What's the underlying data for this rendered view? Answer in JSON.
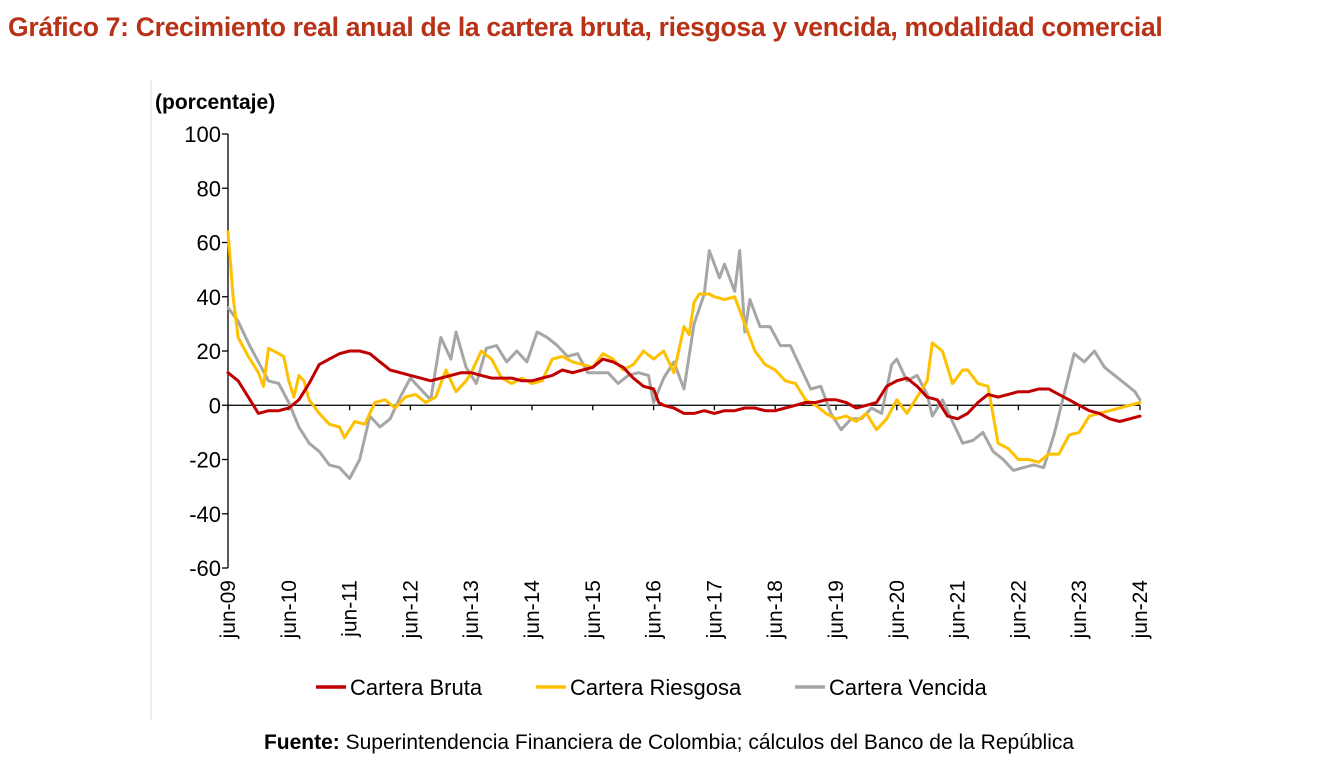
{
  "title": "Gráfico 7: Crecimiento real anual de la cartera bruta, riesgosa y vencida, modalidad comercial",
  "source": {
    "label": "Fuente:",
    "text": "Superintendencia Financiera de Colombia; cálculos del Banco de la República"
  },
  "chart_data": {
    "type": "line",
    "ylabel": "(porcentaje)",
    "ylim": [
      -60,
      100
    ],
    "yticks": [
      -60,
      -40,
      -20,
      0,
      20,
      40,
      60,
      80,
      100
    ],
    "xlim": [
      "2009-06",
      "2024-06"
    ],
    "xticks": [
      "jun-09",
      "jun-10",
      "jun-11",
      "jun-12",
      "jun-13",
      "jun-14",
      "jun-15",
      "jun-16",
      "jun-17",
      "jun-18",
      "jun-19",
      "jun-20",
      "jun-21",
      "jun-22",
      "jun-23",
      "jun-24"
    ],
    "grid": false,
    "legend": "bottom",
    "series": [
      {
        "name": "Cartera Bruta",
        "color": "#c00000",
        "points": [
          [
            "2009-06",
            12
          ],
          [
            "2009-08",
            9
          ],
          [
            "2009-10",
            3
          ],
          [
            "2009-12",
            -3
          ],
          [
            "2010-02",
            -2
          ],
          [
            "2010-04",
            -2
          ],
          [
            "2010-06",
            -1
          ],
          [
            "2010-08",
            2
          ],
          [
            "2010-10",
            8
          ],
          [
            "2010-12",
            15
          ],
          [
            "2011-02",
            17
          ],
          [
            "2011-04",
            19
          ],
          [
            "2011-06",
            20
          ],
          [
            "2011-08",
            20
          ],
          [
            "2011-10",
            19
          ],
          [
            "2011-12",
            16
          ],
          [
            "2012-02",
            13
          ],
          [
            "2012-04",
            12
          ],
          [
            "2012-06",
            11
          ],
          [
            "2012-08",
            10
          ],
          [
            "2012-10",
            9
          ],
          [
            "2012-12",
            10
          ],
          [
            "2013-02",
            11
          ],
          [
            "2013-04",
            12
          ],
          [
            "2013-06",
            12
          ],
          [
            "2013-08",
            11
          ],
          [
            "2013-10",
            10
          ],
          [
            "2013-12",
            10
          ],
          [
            "2014-02",
            10
          ],
          [
            "2014-04",
            9
          ],
          [
            "2014-06",
            9
          ],
          [
            "2014-08",
            10
          ],
          [
            "2014-10",
            11
          ],
          [
            "2014-12",
            13
          ],
          [
            "2015-02",
            12
          ],
          [
            "2015-04",
            13
          ],
          [
            "2015-06",
            14
          ],
          [
            "2015-08",
            17
          ],
          [
            "2015-10",
            16
          ],
          [
            "2015-12",
            14
          ],
          [
            "2016-02",
            10
          ],
          [
            "2016-04",
            7
          ],
          [
            "2016-06",
            6
          ],
          [
            "2016-07",
            1
          ],
          [
            "2016-08",
            0
          ],
          [
            "2016-10",
            -1
          ],
          [
            "2016-12",
            -3
          ],
          [
            "2017-02",
            -3
          ],
          [
            "2017-04",
            -2
          ],
          [
            "2017-06",
            -3
          ],
          [
            "2017-08",
            -2
          ],
          [
            "2017-10",
            -2
          ],
          [
            "2017-12",
            -1
          ],
          [
            "2018-02",
            -1
          ],
          [
            "2018-04",
            -2
          ],
          [
            "2018-06",
            -2
          ],
          [
            "2018-08",
            -1
          ],
          [
            "2018-10",
            0
          ],
          [
            "2018-12",
            1
          ],
          [
            "2019-02",
            1
          ],
          [
            "2019-04",
            2
          ],
          [
            "2019-06",
            2
          ],
          [
            "2019-08",
            1
          ],
          [
            "2019-10",
            -1
          ],
          [
            "2019-12",
            0
          ],
          [
            "2020-02",
            1
          ],
          [
            "2020-04",
            7
          ],
          [
            "2020-06",
            9
          ],
          [
            "2020-08",
            10
          ],
          [
            "2020-10",
            7
          ],
          [
            "2020-12",
            3
          ],
          [
            "2021-02",
            2
          ],
          [
            "2021-04",
            -4
          ],
          [
            "2021-06",
            -5
          ],
          [
            "2021-08",
            -3
          ],
          [
            "2021-10",
            1
          ],
          [
            "2021-12",
            4
          ],
          [
            "2022-02",
            3
          ],
          [
            "2022-04",
            4
          ],
          [
            "2022-06",
            5
          ],
          [
            "2022-08",
            5
          ],
          [
            "2022-10",
            6
          ],
          [
            "2022-12",
            6
          ],
          [
            "2023-02",
            4
          ],
          [
            "2023-04",
            2
          ],
          [
            "2023-06",
            0
          ],
          [
            "2023-08",
            -2
          ],
          [
            "2023-10",
            -3
          ],
          [
            "2023-12",
            -5
          ],
          [
            "2024-02",
            -6
          ],
          [
            "2024-04",
            -5
          ],
          [
            "2024-06",
            -4
          ]
        ]
      },
      {
        "name": "Cartera Riesgosa",
        "color": "#ffc000",
        "points": [
          [
            "2009-06",
            64
          ],
          [
            "2009-07",
            40
          ],
          [
            "2009-08",
            25
          ],
          [
            "2009-10",
            18
          ],
          [
            "2009-12",
            12
          ],
          [
            "2010-01",
            7
          ],
          [
            "2010-02",
            21
          ],
          [
            "2010-04",
            19
          ],
          [
            "2010-05",
            18
          ],
          [
            "2010-06",
            9
          ],
          [
            "2010-07",
            3
          ],
          [
            "2010-08",
            11
          ],
          [
            "2010-09",
            9
          ],
          [
            "2010-10",
            2
          ],
          [
            "2010-12",
            -3
          ],
          [
            "2011-02",
            -7
          ],
          [
            "2011-04",
            -8
          ],
          [
            "2011-05",
            -12
          ],
          [
            "2011-07",
            -6
          ],
          [
            "2011-09",
            -7
          ],
          [
            "2011-11",
            1
          ],
          [
            "2012-01",
            2
          ],
          [
            "2012-03",
            -1
          ],
          [
            "2012-05",
            3
          ],
          [
            "2012-07",
            4
          ],
          [
            "2012-09",
            1
          ],
          [
            "2012-11",
            3
          ],
          [
            "2013-01",
            13
          ],
          [
            "2013-03",
            5
          ],
          [
            "2013-05",
            9
          ],
          [
            "2013-06",
            12
          ],
          [
            "2013-08",
            20
          ],
          [
            "2013-10",
            17
          ],
          [
            "2013-12",
            10
          ],
          [
            "2014-02",
            8
          ],
          [
            "2014-04",
            10
          ],
          [
            "2014-06",
            8
          ],
          [
            "2014-08",
            9
          ],
          [
            "2014-10",
            17
          ],
          [
            "2014-12",
            18
          ],
          [
            "2015-02",
            16
          ],
          [
            "2015-04",
            15
          ],
          [
            "2015-06",
            14
          ],
          [
            "2015-08",
            19
          ],
          [
            "2015-10",
            17
          ],
          [
            "2015-12",
            13
          ],
          [
            "2016-02",
            15
          ],
          [
            "2016-04",
            20
          ],
          [
            "2016-06",
            17
          ],
          [
            "2016-08",
            20
          ],
          [
            "2016-10",
            12
          ],
          [
            "2016-12",
            29
          ],
          [
            "2017-01",
            26
          ],
          [
            "2017-02",
            38
          ],
          [
            "2017-03",
            41
          ],
          [
            "2017-05",
            41
          ],
          [
            "2017-06",
            40
          ],
          [
            "2017-08",
            39
          ],
          [
            "2017-10",
            40
          ],
          [
            "2017-12",
            30
          ],
          [
            "2018-02",
            20
          ],
          [
            "2018-04",
            15
          ],
          [
            "2018-06",
            13
          ],
          [
            "2018-08",
            9
          ],
          [
            "2018-10",
            8
          ],
          [
            "2018-12",
            2
          ],
          [
            "2019-02",
            0
          ],
          [
            "2019-04",
            -3
          ],
          [
            "2019-06",
            -5
          ],
          [
            "2019-08",
            -4
          ],
          [
            "2019-10",
            -6
          ],
          [
            "2019-12",
            -3
          ],
          [
            "2020-02",
            -9
          ],
          [
            "2020-04",
            -5
          ],
          [
            "2020-06",
            2
          ],
          [
            "2020-08",
            -3
          ],
          [
            "2020-10",
            3
          ],
          [
            "2020-12",
            9
          ],
          [
            "2021-01",
            23
          ],
          [
            "2021-03",
            20
          ],
          [
            "2021-05",
            8
          ],
          [
            "2021-07",
            13
          ],
          [
            "2021-08",
            13
          ],
          [
            "2021-10",
            8
          ],
          [
            "2021-12",
            7
          ],
          [
            "2022-02",
            -14
          ],
          [
            "2022-04",
            -16
          ],
          [
            "2022-06",
            -20
          ],
          [
            "2022-08",
            -20
          ],
          [
            "2022-10",
            -21
          ],
          [
            "2022-12",
            -18
          ],
          [
            "2023-02",
            -18
          ],
          [
            "2023-04",
            -11
          ],
          [
            "2023-06",
            -10
          ],
          [
            "2023-08",
            -4
          ],
          [
            "2023-10",
            -3
          ],
          [
            "2023-12",
            -2
          ],
          [
            "2024-02",
            -1
          ],
          [
            "2024-04",
            0
          ],
          [
            "2024-06",
            1
          ]
        ]
      },
      {
        "name": "Cartera Vencida",
        "color": "#a6a6a6",
        "points": [
          [
            "2009-06",
            36
          ],
          [
            "2009-08",
            31
          ],
          [
            "2009-10",
            23
          ],
          [
            "2009-12",
            16
          ],
          [
            "2010-02",
            9
          ],
          [
            "2010-04",
            8
          ],
          [
            "2010-06",
            1
          ],
          [
            "2010-08",
            -8
          ],
          [
            "2010-10",
            -14
          ],
          [
            "2010-12",
            -17
          ],
          [
            "2011-02",
            -22
          ],
          [
            "2011-04",
            -23
          ],
          [
            "2011-06",
            -27
          ],
          [
            "2011-08",
            -20
          ],
          [
            "2011-10",
            -4
          ],
          [
            "2011-12",
            -8
          ],
          [
            "2012-02",
            -5
          ],
          [
            "2012-04",
            3
          ],
          [
            "2012-06",
            10
          ],
          [
            "2012-08",
            6
          ],
          [
            "2012-10",
            2
          ],
          [
            "2012-12",
            25
          ],
          [
            "2013-02",
            17
          ],
          [
            "2013-03",
            27
          ],
          [
            "2013-05",
            14
          ],
          [
            "2013-07",
            8
          ],
          [
            "2013-09",
            21
          ],
          [
            "2013-11",
            22
          ],
          [
            "2014-01",
            16
          ],
          [
            "2014-03",
            20
          ],
          [
            "2014-05",
            16
          ],
          [
            "2014-07",
            27
          ],
          [
            "2014-09",
            25
          ],
          [
            "2014-11",
            22
          ],
          [
            "2015-01",
            18
          ],
          [
            "2015-03",
            19
          ],
          [
            "2015-05",
            12
          ],
          [
            "2015-07",
            12
          ],
          [
            "2015-09",
            12
          ],
          [
            "2015-11",
            8
          ],
          [
            "2016-01",
            11
          ],
          [
            "2016-03",
            12
          ],
          [
            "2016-05",
            11
          ],
          [
            "2016-06",
            1
          ],
          [
            "2016-08",
            10
          ],
          [
            "2016-10",
            16
          ],
          [
            "2016-12",
            6
          ],
          [
            "2017-02",
            30
          ],
          [
            "2017-04",
            41
          ],
          [
            "2017-05",
            57
          ],
          [
            "2017-07",
            47
          ],
          [
            "2017-08",
            52
          ],
          [
            "2017-10",
            42
          ],
          [
            "2017-11",
            57
          ],
          [
            "2017-12",
            27
          ],
          [
            "2018-01",
            39
          ],
          [
            "2018-03",
            29
          ],
          [
            "2018-05",
            29
          ],
          [
            "2018-07",
            22
          ],
          [
            "2018-09",
            22
          ],
          [
            "2018-11",
            14
          ],
          [
            "2019-01",
            6
          ],
          [
            "2019-03",
            7
          ],
          [
            "2019-05",
            -3
          ],
          [
            "2019-07",
            -9
          ],
          [
            "2019-09",
            -5
          ],
          [
            "2019-11",
            -5
          ],
          [
            "2020-01",
            -1
          ],
          [
            "2020-03",
            -3
          ],
          [
            "2020-05",
            15
          ],
          [
            "2020-06",
            17
          ],
          [
            "2020-08",
            9
          ],
          [
            "2020-10",
            11
          ],
          [
            "2020-12",
            4
          ],
          [
            "2021-01",
            -4
          ],
          [
            "2021-03",
            2
          ],
          [
            "2021-05",
            -6
          ],
          [
            "2021-07",
            -14
          ],
          [
            "2021-09",
            -13
          ],
          [
            "2021-11",
            -10
          ],
          [
            "2022-01",
            -17
          ],
          [
            "2022-03",
            -20
          ],
          [
            "2022-05",
            -24
          ],
          [
            "2022-07",
            -23
          ],
          [
            "2022-09",
            -22
          ],
          [
            "2022-11",
            -23
          ],
          [
            "2023-01",
            -11
          ],
          [
            "2023-03",
            4
          ],
          [
            "2023-05",
            19
          ],
          [
            "2023-07",
            16
          ],
          [
            "2023-09",
            20
          ],
          [
            "2023-11",
            14
          ],
          [
            "2024-01",
            11
          ],
          [
            "2024-03",
            8
          ],
          [
            "2024-05",
            5
          ],
          [
            "2024-06",
            2
          ]
        ]
      }
    ]
  }
}
